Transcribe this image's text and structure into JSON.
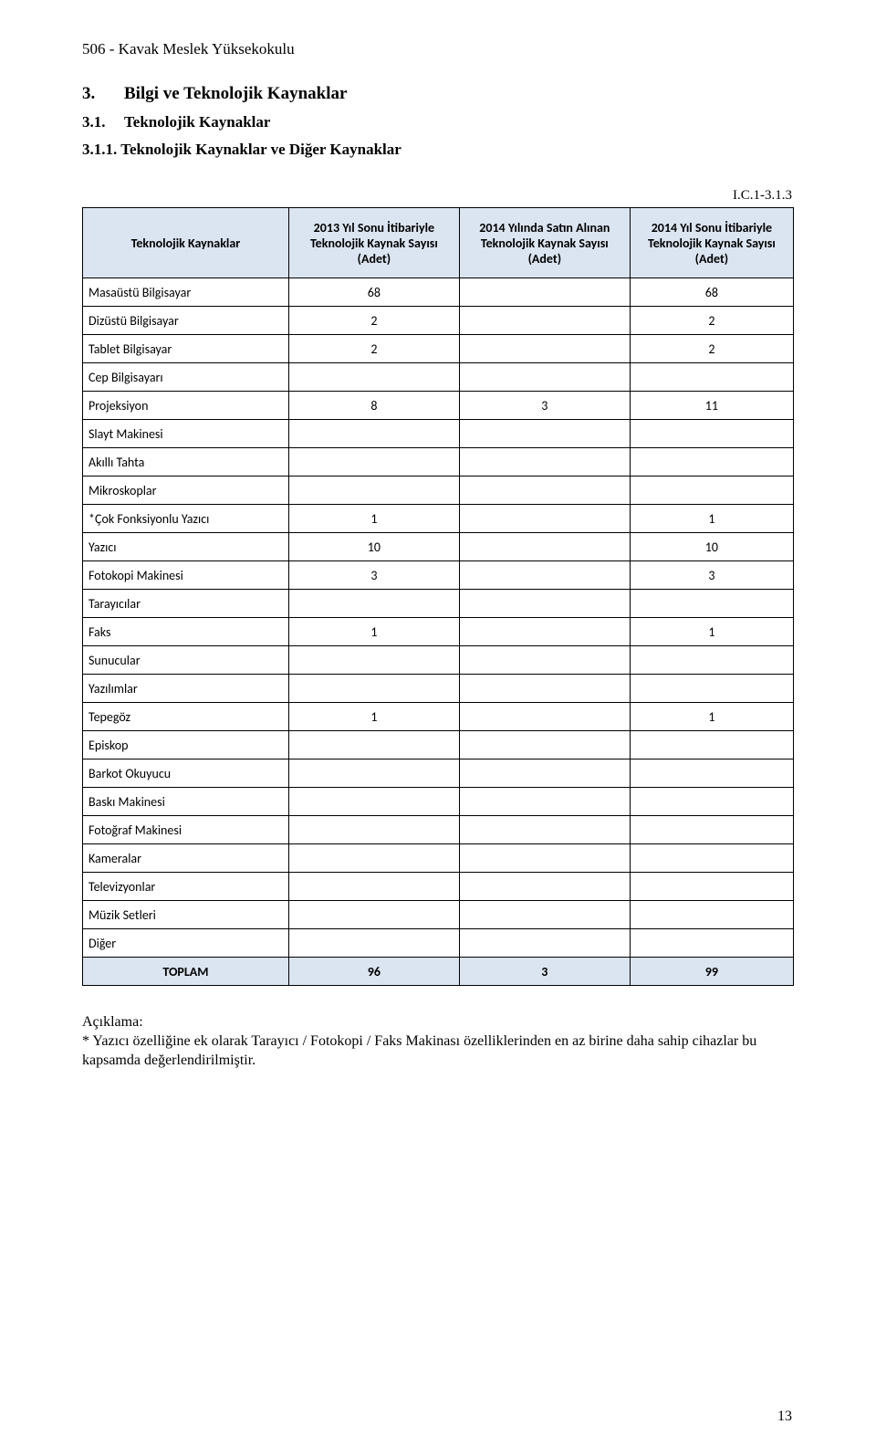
{
  "colors": {
    "header_bg": "#dbe5f1",
    "border": "#000000",
    "text": "#000000",
    "page_bg": "#ffffff"
  },
  "typography": {
    "body_font": "Times New Roman",
    "table_font": "Calibri",
    "body_fontsize_pt": 12,
    "table_fontsize_pt": 10,
    "title_fontsize_pt": 14
  },
  "header": {
    "institution": "506 - Kavak Meslek Yüksekokulu"
  },
  "section3": {
    "number": "3.",
    "title": "Bilgi ve Teknolojik Kaynaklar",
    "sub": {
      "number": "3.1.",
      "title": "Teknolojik Kaynaklar",
      "sub": {
        "numbered_title": "3.1.1. Teknolojik Kaynaklar ve Diğer Kaynaklar"
      }
    }
  },
  "table_code": "I.C.1-3.1.3",
  "table": {
    "type": "table",
    "columns": [
      "Teknolojik Kaynaklar",
      "2013 Yıl Sonu İtibariyle Teknolojik Kaynak Sayısı (Adet)",
      "2014 Yılında Satın Alınan Teknolojik Kaynak Sayısı (Adet)",
      "2014 Yıl Sonu İtibariyle Teknolojik Kaynak Sayısı (Adet)"
    ],
    "column_widths_pct": [
      29,
      24,
      24,
      23
    ],
    "header_bg": "#dbe5f1",
    "rows": [
      {
        "label": "Masaüstü Bilgisayar",
        "v": [
          "68",
          "",
          "68"
        ]
      },
      {
        "label": "Dizüstü Bilgisayar",
        "v": [
          "2",
          "",
          "2"
        ]
      },
      {
        "label": "Tablet Bilgisayar",
        "v": [
          "2",
          "",
          "2"
        ]
      },
      {
        "label": "Cep Bilgisayarı",
        "v": [
          "",
          "",
          ""
        ]
      },
      {
        "label": "Projeksiyon",
        "v": [
          "8",
          "3",
          "11"
        ]
      },
      {
        "label": "Slayt Makinesi",
        "v": [
          "",
          "",
          ""
        ]
      },
      {
        "label": "Akıllı Tahta",
        "v": [
          "",
          "",
          ""
        ]
      },
      {
        "label": "Mikroskoplar",
        "v": [
          "",
          "",
          ""
        ]
      },
      {
        "label": "*Çok Fonksiyonlu Yazıcı",
        "v": [
          "1",
          "",
          "1"
        ]
      },
      {
        "label": "Yazıcı",
        "v": [
          "10",
          "",
          "10"
        ]
      },
      {
        "label": "Fotokopi Makinesi",
        "v": [
          "3",
          "",
          "3"
        ]
      },
      {
        "label": "Tarayıcılar",
        "v": [
          "",
          "",
          ""
        ]
      },
      {
        "label": "Faks",
        "v": [
          "1",
          "",
          "1"
        ]
      },
      {
        "label": "Sunucular",
        "v": [
          "",
          "",
          ""
        ]
      },
      {
        "label": "Yazılımlar",
        "v": [
          "",
          "",
          ""
        ]
      },
      {
        "label": "Tepegöz",
        "v": [
          "1",
          "",
          "1"
        ]
      },
      {
        "label": "Episkop",
        "v": [
          "",
          "",
          ""
        ]
      },
      {
        "label": "Barkot Okuyucu",
        "v": [
          "",
          "",
          ""
        ]
      },
      {
        "label": "Baskı Makinesi",
        "v": [
          "",
          "",
          ""
        ]
      },
      {
        "label": "Fotoğraf Makinesi",
        "v": [
          "",
          "",
          ""
        ]
      },
      {
        "label": "Kameralar",
        "v": [
          "",
          "",
          ""
        ]
      },
      {
        "label": "Televizyonlar",
        "v": [
          "",
          "",
          ""
        ]
      },
      {
        "label": "Müzik Setleri",
        "v": [
          "",
          "",
          ""
        ]
      },
      {
        "label": "Diğer",
        "v": [
          "",
          "",
          ""
        ]
      }
    ],
    "total": {
      "label": "TOPLAM",
      "v": [
        "96",
        "3",
        "99"
      ]
    }
  },
  "footnote": {
    "title": "Açıklama:",
    "body": "* Yazıcı özelliğine ek olarak Tarayıcı / Fotokopi / Faks Makinası özelliklerinden en az birine daha sahip cihazlar bu kapsamda değerlendirilmiştir."
  },
  "page_number": "13"
}
